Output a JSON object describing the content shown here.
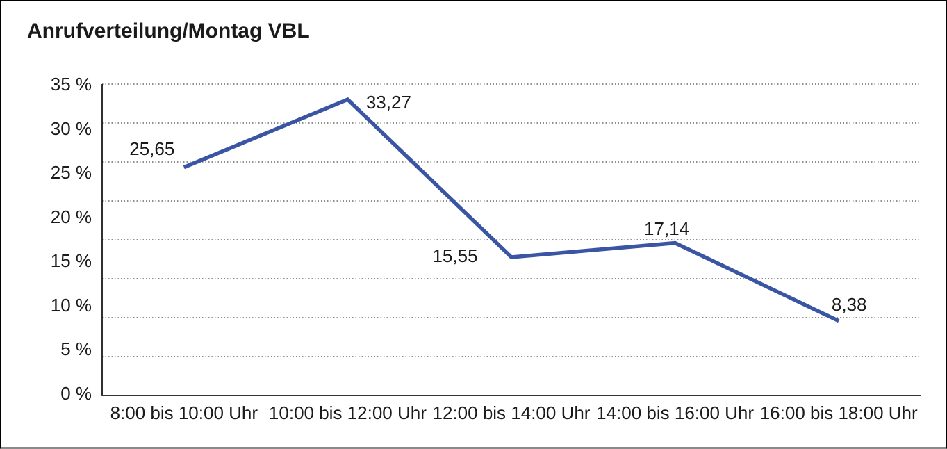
{
  "window": {
    "title": "Anrufverteilung/Montag VBL"
  },
  "chart_data": {
    "type": "line",
    "title": "Anrufverteilung/Montag VBL",
    "categories": [
      "8:00 bis 10:00 Uhr",
      "10:00 bis 12:00 Uhr",
      "12:00 bis 14:00 Uhr",
      "14:00 bis 16:00 Uhr",
      "16:00 bis 18:00 Uhr"
    ],
    "values": [
      25.65,
      33.27,
      15.55,
      17.14,
      8.38
    ],
    "point_labels": [
      "25,65",
      "33,27",
      "15,55",
      "17,14",
      "8,38"
    ],
    "y_tick_labels": [
      "35 %",
      "30 %",
      "25 %",
      "20 %",
      "15 %",
      "10 %",
      "5 %",
      "0 %"
    ],
    "ylim": [
      0,
      35
    ],
    "grid": true,
    "gridline_count": 9,
    "gridline_style": "dotted",
    "legend": "none",
    "xlabel": "",
    "ylabel": "",
    "line_color": "#3A55A4",
    "axis_color": "#1a1a1a",
    "gridline_color": "#4a4a4a",
    "text_color": "#1a1a1a",
    "background_color": "#ffffff"
  }
}
